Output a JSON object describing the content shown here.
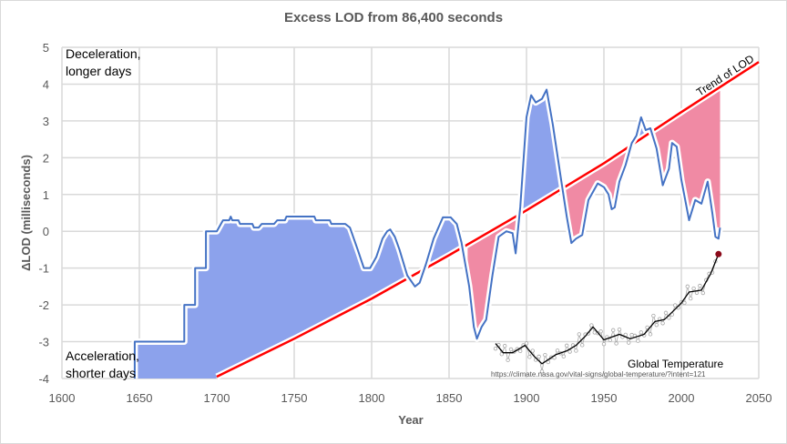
{
  "chart_data": {
    "type": "line",
    "title": "Excess LOD from 86,400 seconds",
    "xlabel": "Year",
    "ylabel": "ΔLOD (milliseconds)",
    "xlim": [
      1600,
      2050
    ],
    "ylim": [
      -4,
      5
    ],
    "xticks": [
      1600,
      1650,
      1700,
      1750,
      1800,
      1850,
      1900,
      1950,
      2000,
      2050
    ],
    "yticks": [
      -4,
      -3,
      -2,
      -1,
      0,
      1,
      2,
      3,
      4,
      5
    ],
    "grid": true,
    "colors": {
      "lod": "#4472c4",
      "above_fill": "#8ca2ec",
      "below_fill": "#f08aa4",
      "trend": "#ff0000",
      "temp": "#000000",
      "temp_points": "#a6a6a6",
      "latest": "#8b0a1a"
    },
    "series": [
      {
        "name": "ΔLOD",
        "points": [
          [
            1647,
            -4
          ],
          [
            1647,
            -3
          ],
          [
            1679,
            -3
          ],
          [
            1679,
            -2
          ],
          [
            1686,
            -2
          ],
          [
            1686,
            -1
          ],
          [
            1693,
            -1
          ],
          [
            1693,
            0
          ],
          [
            1700,
            0
          ],
          [
            1704,
            0.3
          ],
          [
            1708,
            0.3
          ],
          [
            1709,
            0.4
          ],
          [
            1710,
            0.3
          ],
          [
            1714,
            0.3
          ],
          [
            1715,
            0.2
          ],
          [
            1723,
            0.2
          ],
          [
            1724,
            0.1
          ],
          [
            1727,
            0.1
          ],
          [
            1729,
            0.2
          ],
          [
            1737,
            0.2
          ],
          [
            1739,
            0.3
          ],
          [
            1744,
            0.3
          ],
          [
            1745,
            0.4
          ],
          [
            1763,
            0.4
          ],
          [
            1764,
            0.3
          ],
          [
            1773,
            0.3
          ],
          [
            1774,
            0.2
          ],
          [
            1783,
            0.2
          ],
          [
            1786,
            0.1
          ],
          [
            1791,
            -0.5
          ],
          [
            1795,
            -1.0
          ],
          [
            1799,
            -1.0
          ],
          [
            1803,
            -0.7
          ],
          [
            1807,
            -0.2
          ],
          [
            1810,
            0.0
          ],
          [
            1812,
            0.05
          ],
          [
            1815,
            -0.15
          ],
          [
            1818,
            -0.5
          ],
          [
            1823,
            -1.2
          ],
          [
            1828,
            -1.5
          ],
          [
            1831,
            -1.4
          ],
          [
            1835,
            -0.9
          ],
          [
            1840,
            -0.2
          ],
          [
            1846,
            0.38
          ],
          [
            1851,
            0.38
          ],
          [
            1855,
            0.2
          ],
          [
            1858,
            -0.3
          ],
          [
            1863,
            -1.5
          ],
          [
            1866,
            -2.6
          ],
          [
            1868,
            -2.92
          ],
          [
            1871,
            -2.6
          ],
          [
            1874,
            -2.4
          ],
          [
            1878,
            -1.2
          ],
          [
            1882,
            -0.15
          ],
          [
            1887,
            0.0
          ],
          [
            1891,
            -0.05
          ],
          [
            1893,
            -0.6
          ],
          [
            1896,
            0.67
          ],
          [
            1900,
            3.1
          ],
          [
            1903,
            3.7
          ],
          [
            1906,
            3.5
          ],
          [
            1910,
            3.6
          ],
          [
            1913,
            3.85
          ],
          [
            1917,
            2.9
          ],
          [
            1922,
            1.5
          ],
          [
            1926,
            0.4
          ],
          [
            1929,
            -0.32
          ],
          [
            1932,
            -0.2
          ],
          [
            1936,
            -0.1
          ],
          [
            1940,
            0.85
          ],
          [
            1946,
            1.3
          ],
          [
            1950,
            1.2
          ],
          [
            1953,
            1.0
          ],
          [
            1955,
            0.6
          ],
          [
            1957,
            0.65
          ],
          [
            1960,
            1.35
          ],
          [
            1964,
            1.8
          ],
          [
            1968,
            2.4
          ],
          [
            1971,
            2.6
          ],
          [
            1974,
            3.1
          ],
          [
            1977,
            2.75
          ],
          [
            1980,
            2.8
          ],
          [
            1984,
            2.25
          ],
          [
            1988,
            1.25
          ],
          [
            1992,
            1.7
          ],
          [
            1994,
            2.4
          ],
          [
            1997,
            2.3
          ],
          [
            2000,
            1.4
          ],
          [
            2005,
            0.3
          ],
          [
            2009,
            0.85
          ],
          [
            2013,
            0.75
          ],
          [
            2017,
            1.35
          ],
          [
            2020,
            0.5
          ],
          [
            2022,
            -0.15
          ],
          [
            2024,
            -0.2
          ],
          [
            2025,
            0.1
          ]
        ]
      },
      {
        "name": "Trend of LOD",
        "points": [
          [
            1700,
            -3.95
          ],
          [
            1750,
            -2.92
          ],
          [
            1800,
            -1.83
          ],
          [
            1850,
            -0.65
          ],
          [
            1900,
            0.57
          ],
          [
            1950,
            1.85
          ],
          [
            2000,
            3.24
          ],
          [
            2050,
            4.6
          ]
        ]
      },
      {
        "name": "Global Temperature",
        "points": [
          [
            1880,
            -3.05
          ],
          [
            1885,
            -3.3
          ],
          [
            1891,
            -3.3
          ],
          [
            1899,
            -3.1
          ],
          [
            1905,
            -3.4
          ],
          [
            1910,
            -3.6
          ],
          [
            1919,
            -3.35
          ],
          [
            1926,
            -3.25
          ],
          [
            1932,
            -3.1
          ],
          [
            1938,
            -2.85
          ],
          [
            1943,
            -2.6
          ],
          [
            1950,
            -2.95
          ],
          [
            1960,
            -2.8
          ],
          [
            1967,
            -2.92
          ],
          [
            1976,
            -2.8
          ],
          [
            1983,
            -2.45
          ],
          [
            1989,
            -2.4
          ],
          [
            1994,
            -2.2
          ],
          [
            2000,
            -1.95
          ],
          [
            2005,
            -1.65
          ],
          [
            2013,
            -1.6
          ],
          [
            2019,
            -1.15
          ],
          [
            2024,
            -0.62
          ]
        ]
      }
    ],
    "fill_ranges": [
      [
        1647,
        1822
      ],
      [
        1838,
        1858
      ],
      [
        1862,
        2025
      ]
    ],
    "annotations": {
      "top_line1": "Deceleration,",
      "top_line2": "longer days",
      "bottom_line1": "Acceleration,",
      "bottom_line2": "shorter days",
      "trend_label": "Trend of LOD",
      "temp_label": "Global Temperature",
      "temp_source": "https://climate.nasa.gov/vital-signs/global-temperature/?intent=121"
    }
  }
}
